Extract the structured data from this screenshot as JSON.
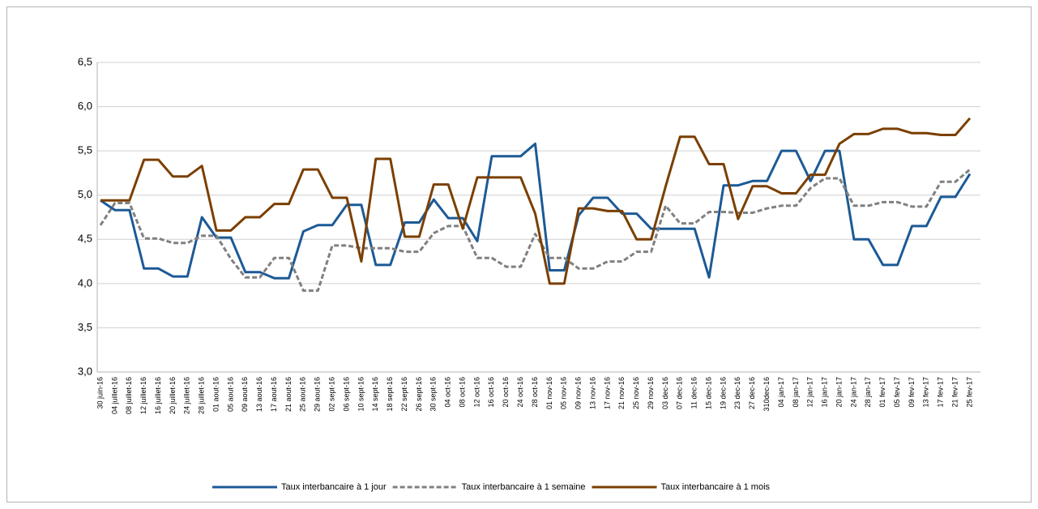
{
  "chart_data": {
    "type": "line",
    "categories": [
      "30 juin-16",
      "04 juillet-16",
      "08 juillet-16",
      "12 juillet-16",
      "16 juillet-16",
      "20 juillet-16",
      "24 juillet-16",
      "28 juillet-16",
      "01 aout-16",
      "05 aout-16",
      "09 aout-16",
      "13 aout-16",
      "17 aout-16",
      "21 aout-16",
      "25 aout-16",
      "29 aout-16",
      "02 sept-16",
      "06 sept-16",
      "10 sept-16",
      "14 sept-16",
      "18 sept-16",
      "22 sept-16",
      "26 sept-16",
      "30 sept-16",
      "04 oct-16",
      "08 oct-16",
      "12 oct-16",
      "16 oct-16",
      "20 oct-16",
      "24 oct-16",
      "28 oct-16",
      "01 nov-16",
      "05 nov-16",
      "09 nov-16",
      "13 nov-16",
      "17 nov-16",
      "21 nov-16",
      "25 nov-16",
      "29 nov-16",
      "03 dec-16",
      "07 dec-16",
      "11 dec-16",
      "15 dec-16",
      "19 dec-16",
      "23 dec-16",
      "27 dec-16",
      "310dec-16",
      "04 jan-17",
      "08 jan-17",
      "12 jan-17",
      "16 jan-17",
      "20 jan-17",
      "24 jan-17",
      "28 jan-17",
      "01 fev-17",
      "05 fev-17",
      "09 fev-17",
      "13 fev-17",
      "17 fev-17",
      "21 fev-17",
      "25 fev-17"
    ],
    "series": [
      {
        "name": "Taux interbancaire à 1 jour",
        "color": "#1c5a96",
        "line_style": "solid",
        "values": [
          4.94,
          4.83,
          4.83,
          4.17,
          4.17,
          4.08,
          4.08,
          4.75,
          4.52,
          4.52,
          4.13,
          4.13,
          4.06,
          4.06,
          4.59,
          4.66,
          4.66,
          4.89,
          4.89,
          4.21,
          4.21,
          4.69,
          4.69,
          4.95,
          4.74,
          4.74,
          4.48,
          5.44,
          5.44,
          5.44,
          5.58,
          4.15,
          4.15,
          4.77,
          4.97,
          4.97,
          4.79,
          4.79,
          4.62,
          4.62,
          4.62,
          4.62,
          4.07,
          5.11,
          5.11,
          5.16,
          5.16,
          5.5,
          5.5,
          5.16,
          5.5,
          5.5,
          4.5,
          4.5,
          4.21,
          4.21,
          4.65,
          4.65,
          4.98,
          4.98,
          5.24
        ]
      },
      {
        "name": "Taux interbancaire à 1 semaine",
        "color": "#808080",
        "line_style": "dashed",
        "values": [
          4.66,
          4.91,
          4.91,
          4.51,
          4.51,
          4.46,
          4.46,
          4.54,
          4.54,
          4.28,
          4.07,
          4.07,
          4.29,
          4.29,
          3.92,
          3.92,
          4.43,
          4.43,
          4.4,
          4.4,
          4.4,
          4.36,
          4.36,
          4.57,
          4.65,
          4.65,
          4.29,
          4.29,
          4.19,
          4.19,
          4.56,
          4.29,
          4.29,
          4.17,
          4.17,
          4.25,
          4.25,
          4.36,
          4.36,
          4.88,
          4.68,
          4.68,
          4.81,
          4.81,
          4.8,
          4.8,
          4.85,
          4.88,
          4.88,
          5.08,
          5.19,
          5.19,
          4.88,
          4.88,
          4.92,
          4.92,
          4.87,
          4.87,
          5.15,
          5.15,
          5.29
        ]
      },
      {
        "name": "Taux interbancaire à 1 mois",
        "color": "#7b3f00",
        "line_style": "solid",
        "values": [
          4.94,
          4.94,
          4.94,
          5.4,
          5.4,
          5.21,
          5.21,
          5.33,
          4.6,
          4.6,
          4.75,
          4.75,
          4.9,
          4.9,
          5.29,
          5.29,
          4.97,
          4.97,
          4.25,
          5.41,
          5.41,
          4.53,
          4.53,
          5.12,
          5.12,
          4.62,
          5.2,
          5.2,
          5.2,
          5.2,
          4.79,
          4.0,
          4.0,
          4.85,
          4.85,
          4.82,
          4.82,
          4.5,
          4.5,
          5.1,
          5.66,
          5.66,
          5.35,
          5.35,
          4.73,
          5.1,
          5.1,
          5.02,
          5.02,
          5.23,
          5.23,
          5.58,
          5.69,
          5.69,
          5.75,
          5.75,
          5.7,
          5.7,
          5.68,
          5.68,
          5.87
        ]
      }
    ],
    "ylim": [
      3.0,
      6.5
    ],
    "yticks": [
      {
        "value": 3.0,
        "label": "3,0"
      },
      {
        "value": 3.5,
        "label": "3,5"
      },
      {
        "value": 4.0,
        "label": "4,0"
      },
      {
        "value": 4.5,
        "label": "4,5"
      },
      {
        "value": 5.0,
        "label": "5,0"
      },
      {
        "value": 5.5,
        "label": "5,5"
      },
      {
        "value": 6.0,
        "label": "6,0"
      },
      {
        "value": 6.5,
        "label": "6,5"
      }
    ],
    "grid": true,
    "legend": "bottom"
  }
}
